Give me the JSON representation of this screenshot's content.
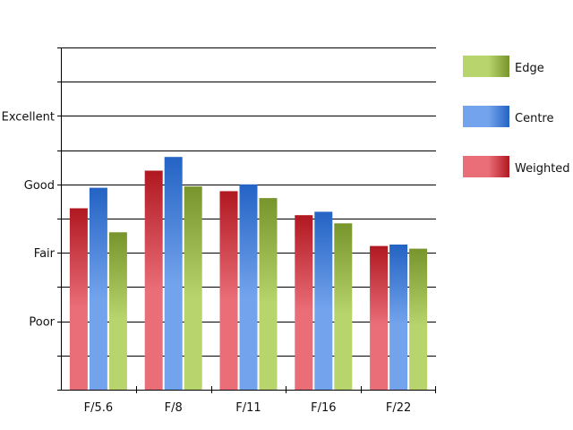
{
  "chart_data": {
    "type": "bar",
    "categories": [
      "F/5.6",
      "F/8",
      "F/11",
      "F/16",
      "F/22"
    ],
    "series": [
      {
        "name": "Weighted",
        "values": [
          2.65,
          3.2,
          2.9,
          2.55,
          2.1
        ],
        "color_light": "#ea6e78",
        "color_dark": "#b01820"
      },
      {
        "name": "Centre",
        "values": [
          2.95,
          3.4,
          3.0,
          2.6,
          2.12
        ],
        "color_light": "#73a3ec",
        "color_dark": "#2463c4"
      },
      {
        "name": "Edge",
        "values": [
          2.3,
          2.97,
          2.8,
          2.43,
          2.06
        ],
        "color_light": "#b8d46c",
        "color_dark": "#77952c"
      }
    ],
    "y_tick_labels": [
      {
        "value": 1,
        "label": "Poor"
      },
      {
        "value": 2,
        "label": "Fair"
      },
      {
        "value": 3,
        "label": "Good"
      },
      {
        "value": 4,
        "label": "Excellent"
      }
    ],
    "ylim": [
      0,
      5
    ],
    "grid_step": 0.5,
    "grid": true,
    "legend_order": [
      "Edge",
      "Centre",
      "Weighted"
    ],
    "legend_position": "right",
    "title": "",
    "xlabel": "",
    "ylabel": ""
  }
}
